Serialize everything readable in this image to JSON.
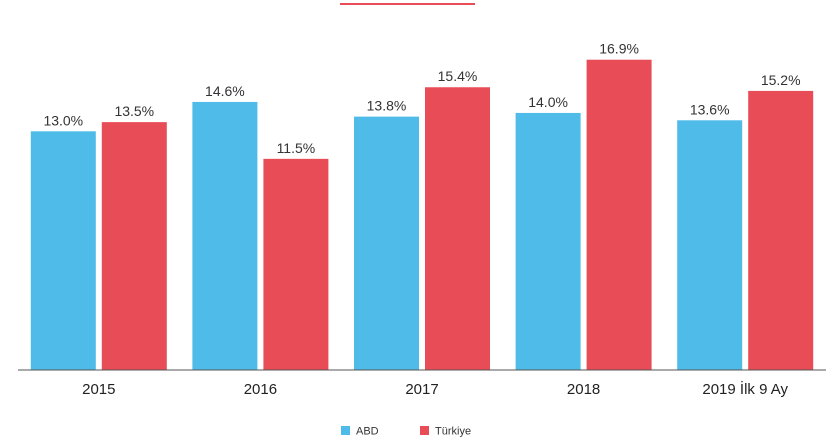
{
  "chart_data": {
    "type": "bar",
    "title": "",
    "xlabel": "",
    "ylabel": "",
    "categories": [
      "2015",
      "2016",
      "2017",
      "2018",
      "2019 İlk 9 Ay"
    ],
    "series": [
      {
        "name": "ABD",
        "color": "#4EBBE8",
        "values": [
          13.0,
          14.6,
          13.8,
          14.0,
          13.6
        ],
        "labels": [
          "13.0%",
          "14.6%",
          "13.8%",
          "14.0%",
          "13.6%"
        ]
      },
      {
        "name": "Türkiye",
        "color": "#E84C57",
        "values": [
          13.5,
          11.5,
          15.4,
          16.9,
          15.2
        ],
        "labels": [
          "13.5%",
          "11.5%",
          "15.4%",
          "16.9%",
          "15.2%"
        ]
      }
    ],
    "ylim": [
      0,
      18.3
    ],
    "y_axis_visible": false,
    "grid": false,
    "legend_position": "bottom-center",
    "top_accent_color": "#E84C57"
  }
}
